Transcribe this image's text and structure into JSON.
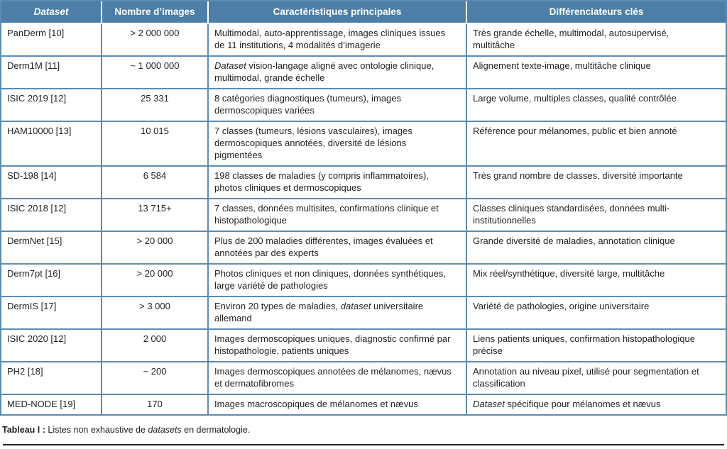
{
  "colors": {
    "header_bg": "#4d7ea8",
    "border_blue": "#5d8cb2",
    "header_text": "#ffffff",
    "body_text": "#231f20",
    "bottom_rule": "#231f20"
  },
  "table": {
    "headers": [
      "Dataset",
      "Nombre d’images",
      "Caractéristiques principales",
      "Différenciateurs clés"
    ],
    "rows": [
      {
        "dataset": "PanDerm [10]",
        "count": "> 2 000 000",
        "characteristics": [
          {
            "t": "Multimodal, auto-apprentissage, images cliniques issues de 11 institutions, 4 modalités d’imagerie"
          }
        ],
        "differentiators": [
          {
            "t": "Très grande échelle, multimodal, autosupervisé, multitâche"
          }
        ]
      },
      {
        "dataset": "Derm1M [11]",
        "count": "~ 1 000 000",
        "characteristics": [
          {
            "t": "Dataset",
            "i": true
          },
          {
            "t": " vision-langage aligné avec ontologie clinique, multimodal, grande échelle"
          }
        ],
        "differentiators": [
          {
            "t": "Alignement texte-image, multitâche clinique"
          }
        ]
      },
      {
        "dataset": "ISIC 2019 [12]",
        "count": "25 331",
        "characteristics": [
          {
            "t": "8 catégories diagnostiques (tumeurs), images dermoscopiques variées"
          }
        ],
        "differentiators": [
          {
            "t": "Large volume, multiples classes, qualité contrôlée"
          }
        ]
      },
      {
        "dataset": "HAM10000 [13]",
        "count": "10 015",
        "characteristics": [
          {
            "t": "7 classes (tumeurs, lésions vasculaires), images dermoscopiques annotées, diversité de lésions pigmentées"
          }
        ],
        "differentiators": [
          {
            "t": "Référence pour mélanomes, public et bien annoté"
          }
        ]
      },
      {
        "dataset": "SD-198 [14]",
        "count": "6 584",
        "characteristics": [
          {
            "t": "198 classes de maladies (y compris inflammatoires), photos cliniques et dermoscopiques"
          }
        ],
        "differentiators": [
          {
            "t": "Très grand nombre de classes, diversité importante"
          }
        ]
      },
      {
        "dataset": "ISIC 2018 [12]",
        "count": "13 715+",
        "characteristics": [
          {
            "t": "7 classes, données multisites, confirmations clinique et histopathologique"
          }
        ],
        "differentiators": [
          {
            "t": "Classes cliniques standardisées, données multi-institutionnelles"
          }
        ]
      },
      {
        "dataset": "DermNet [15]",
        "count": "> 20 000",
        "characteristics": [
          {
            "t": "Plus de 200 maladies différentes, images évaluées et annotées par des experts"
          }
        ],
        "differentiators": [
          {
            "t": "Grande diversité de maladies, annotation clinique"
          }
        ]
      },
      {
        "dataset": "Derm7pt [16]",
        "count": "> 20 000",
        "characteristics": [
          {
            "t": "Photos cliniques et non cliniques, données synthétiques, large variété de pathologies"
          }
        ],
        "differentiators": [
          {
            "t": "Mix réel/synthétique, diversité large, multitâche"
          }
        ]
      },
      {
        "dataset": "DermIS [17]",
        "count": "> 3 000",
        "characteristics": [
          {
            "t": "Environ 20 types de maladies, "
          },
          {
            "t": "dataset",
            "i": true
          },
          {
            "t": " universitaire allemand"
          }
        ],
        "differentiators": [
          {
            "t": "Variété de pathologies, origine universitaire"
          }
        ]
      },
      {
        "dataset": "ISIC 2020 [12]",
        "count": "2 000",
        "characteristics": [
          {
            "t": "Images dermoscopiques uniques, diagnostic confirmé par histopathologie, patients uniques"
          }
        ],
        "differentiators": [
          {
            "t": "Liens patients uniques, confirmation histopathologique précise"
          }
        ]
      },
      {
        "dataset": "PH2 [18]",
        "count": "~ 200",
        "characteristics": [
          {
            "t": "Images dermoscopiques annotées de mélanomes, nævus et dermatofibromes"
          }
        ],
        "differentiators": [
          {
            "t": "Annotation au niveau pixel, utilisé pour segmentation et classification"
          }
        ]
      },
      {
        "dataset": "MED-NODE [19]",
        "count": "170",
        "characteristics": [
          {
            "t": "Images macroscopiques de mélanomes et nævus"
          }
        ],
        "differentiators": [
          {
            "t": "Dataset",
            "i": true
          },
          {
            "t": " spécifique pour mélanomes et nævus"
          }
        ]
      }
    ]
  },
  "caption": {
    "segments": [
      {
        "t": "Tableau I :",
        "b": true
      },
      {
        "t": " Listes non exhaustive de "
      },
      {
        "t": "datasets",
        "i": true
      },
      {
        "t": " en dermatologie."
      }
    ]
  }
}
